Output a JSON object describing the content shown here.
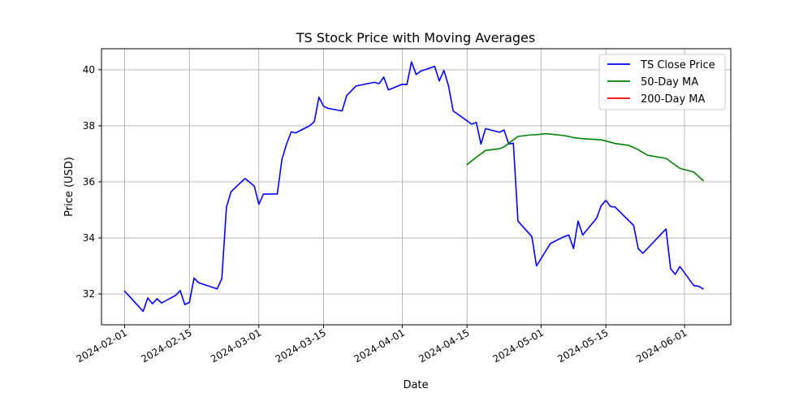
{
  "chart_data": {
    "type": "line",
    "title": "TS Stock Price with Moving Averages",
    "xlabel": "Date",
    "ylabel": "Price (USD)",
    "x_ticks": [
      "2024-02-01",
      "2024-02-15",
      "2024-03-01",
      "2024-03-15",
      "2024-04-01",
      "2024-04-15",
      "2024-05-01",
      "2024-05-15",
      "2024-06-01"
    ],
    "y_ticks": [
      32,
      34,
      36,
      38,
      40
    ],
    "xlim": [
      "2024-01-27",
      "2024-06-11"
    ],
    "ylim": [
      30.9,
      40.75
    ],
    "grid": true,
    "legend_position": "top-right",
    "series": [
      {
        "name": "TS Close Price",
        "color": "#0000ff",
        "points": [
          [
            "2024-02-01",
            32.1
          ],
          [
            "2024-02-05",
            31.38
          ],
          [
            "2024-02-06",
            31.86
          ],
          [
            "2024-02-07",
            31.65
          ],
          [
            "2024-02-08",
            31.83
          ],
          [
            "2024-02-09",
            31.68
          ],
          [
            "2024-02-12",
            31.95
          ],
          [
            "2024-02-13",
            32.12
          ],
          [
            "2024-02-14",
            31.62
          ],
          [
            "2024-02-15",
            31.7
          ],
          [
            "2024-02-16",
            32.57
          ],
          [
            "2024-02-17",
            32.4
          ],
          [
            "2024-02-21",
            32.18
          ],
          [
            "2024-02-22",
            32.55
          ],
          [
            "2024-02-23",
            35.1
          ],
          [
            "2024-02-24",
            35.65
          ],
          [
            "2024-02-27",
            36.12
          ],
          [
            "2024-02-29",
            35.85
          ],
          [
            "2024-03-01",
            35.2
          ],
          [
            "2024-03-02",
            35.56
          ],
          [
            "2024-03-05",
            35.57
          ],
          [
            "2024-03-06",
            36.8
          ],
          [
            "2024-03-07",
            37.35
          ],
          [
            "2024-03-08",
            37.78
          ],
          [
            "2024-03-09",
            37.75
          ],
          [
            "2024-03-12",
            38.0
          ],
          [
            "2024-03-13",
            38.15
          ],
          [
            "2024-03-14",
            39.02
          ],
          [
            "2024-03-15",
            38.7
          ],
          [
            "2024-03-16",
            38.62
          ],
          [
            "2024-03-19",
            38.53
          ],
          [
            "2024-03-20",
            39.08
          ],
          [
            "2024-03-22",
            39.42
          ],
          [
            "2024-03-26",
            39.55
          ],
          [
            "2024-03-27",
            39.5
          ],
          [
            "2024-03-28",
            39.74
          ],
          [
            "2024-03-29",
            39.28
          ],
          [
            "2024-04-01",
            39.48
          ],
          [
            "2024-04-02",
            39.47
          ],
          [
            "2024-04-03",
            40.28
          ],
          [
            "2024-04-04",
            39.83
          ],
          [
            "2024-04-05",
            39.95
          ],
          [
            "2024-04-08",
            40.12
          ],
          [
            "2024-04-09",
            39.6
          ],
          [
            "2024-04-10",
            39.98
          ],
          [
            "2024-04-11",
            39.42
          ],
          [
            "2024-04-12",
            38.53
          ],
          [
            "2024-04-16",
            38.06
          ],
          [
            "2024-04-17",
            38.12
          ],
          [
            "2024-04-18",
            37.35
          ],
          [
            "2024-04-19",
            37.9
          ],
          [
            "2024-04-22",
            37.77
          ],
          [
            "2024-04-23",
            37.85
          ],
          [
            "2024-04-24",
            37.35
          ],
          [
            "2024-04-25",
            37.38
          ],
          [
            "2024-04-26",
            34.6
          ],
          [
            "2024-04-29",
            34.05
          ],
          [
            "2024-04-30",
            33.0
          ],
          [
            "2024-05-03",
            33.8
          ],
          [
            "2024-05-06",
            34.05
          ],
          [
            "2024-05-07",
            34.1
          ],
          [
            "2024-05-08",
            33.62
          ],
          [
            "2024-05-09",
            34.6
          ],
          [
            "2024-05-10",
            34.1
          ],
          [
            "2024-05-13",
            34.7
          ],
          [
            "2024-05-14",
            35.15
          ],
          [
            "2024-05-15",
            35.34
          ],
          [
            "2024-05-16",
            35.12
          ],
          [
            "2024-05-17",
            35.1
          ],
          [
            "2024-05-21",
            34.45
          ],
          [
            "2024-05-22",
            33.62
          ],
          [
            "2024-05-23",
            33.45
          ],
          [
            "2024-05-28",
            34.32
          ],
          [
            "2024-05-29",
            32.9
          ],
          [
            "2024-05-30",
            32.7
          ],
          [
            "2024-05-31",
            32.98
          ],
          [
            "2024-06-03",
            32.3
          ],
          [
            "2024-06-04",
            32.28
          ],
          [
            "2024-06-05",
            32.18
          ]
        ]
      },
      {
        "name": "50-Day MA",
        "color": "#008000",
        "points": [
          [
            "2024-04-15",
            36.62
          ],
          [
            "2024-04-17",
            36.88
          ],
          [
            "2024-04-19",
            37.12
          ],
          [
            "2024-04-22",
            37.18
          ],
          [
            "2024-04-23",
            37.25
          ],
          [
            "2024-04-26",
            37.62
          ],
          [
            "2024-04-29",
            37.68
          ],
          [
            "2024-04-30",
            37.68
          ],
          [
            "2024-05-02",
            37.72
          ],
          [
            "2024-05-06",
            37.65
          ],
          [
            "2024-05-08",
            37.58
          ],
          [
            "2024-05-10",
            37.54
          ],
          [
            "2024-05-14",
            37.5
          ],
          [
            "2024-05-17",
            37.37
          ],
          [
            "2024-05-20",
            37.3
          ],
          [
            "2024-05-22",
            37.15
          ],
          [
            "2024-05-24",
            36.95
          ],
          [
            "2024-05-28",
            36.84
          ],
          [
            "2024-05-31",
            36.48
          ],
          [
            "2024-06-03",
            36.35
          ],
          [
            "2024-06-05",
            36.05
          ]
        ]
      },
      {
        "name": "200-Day MA",
        "color": "#ff0000",
        "points": []
      }
    ]
  }
}
